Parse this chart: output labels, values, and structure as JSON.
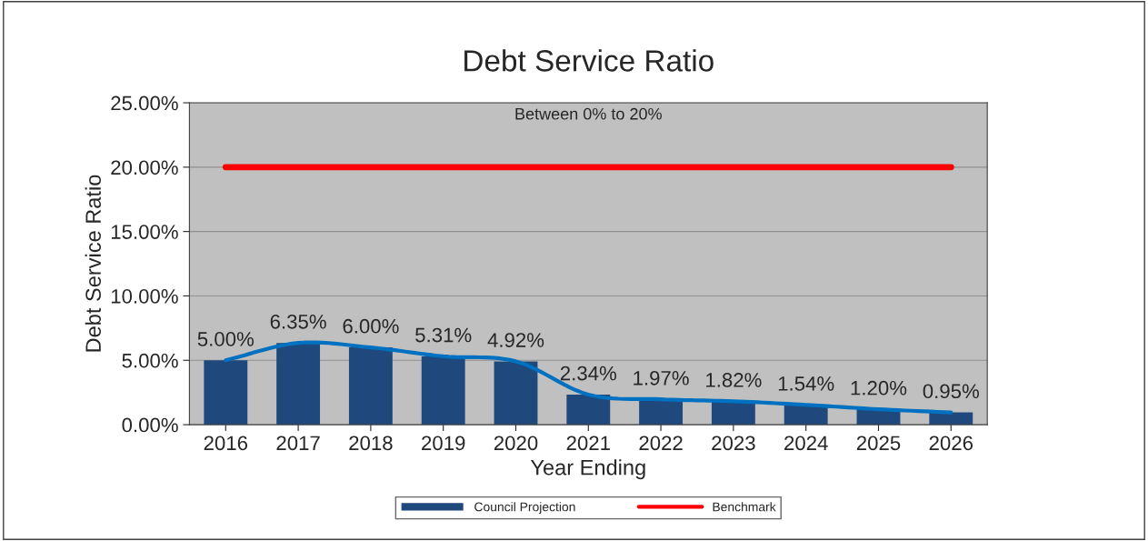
{
  "chart_data": {
    "type": "bar",
    "title": "Debt Service Ratio",
    "subtitle": "Between 0% to 20%",
    "xlabel": "Year Ending",
    "ylabel": "Debt Service Ratio",
    "categories": [
      "2016",
      "2017",
      "2018",
      "2019",
      "2020",
      "2021",
      "2022",
      "2023",
      "2024",
      "2025",
      "2026"
    ],
    "series": [
      {
        "name": "Council Projection",
        "color": "#1f497d",
        "values": [
          5.0,
          6.35,
          6.0,
          5.31,
          4.92,
          2.34,
          1.97,
          1.82,
          1.54,
          1.2,
          0.95
        ],
        "value_labels": [
          "5.00%",
          "6.35%",
          "6.00%",
          "5.31%",
          "4.92%",
          "2.34%",
          "1.97%",
          "1.82%",
          "1.54%",
          "1.20%",
          "0.95%"
        ]
      },
      {
        "type": "line",
        "color": "#0070c0",
        "values": [
          5.0,
          6.35,
          6.0,
          5.31,
          4.92,
          2.34,
          1.97,
          1.82,
          1.54,
          1.2,
          0.95
        ]
      },
      {
        "name": "Benchmark",
        "type": "line",
        "color": "#ff0000",
        "values": [
          20,
          20,
          20,
          20,
          20,
          20,
          20,
          20,
          20,
          20,
          20
        ]
      }
    ],
    "ylim": [
      0,
      25
    ],
    "yticks": [
      {
        "value": 0,
        "label": "0.00%"
      },
      {
        "value": 5,
        "label": "5.00%"
      },
      {
        "value": 10,
        "label": "10.00%"
      },
      {
        "value": 15,
        "label": "15.00%"
      },
      {
        "value": 20,
        "label": "20.00%"
      },
      {
        "value": 25,
        "label": "25.00%"
      }
    ],
    "grid": "y",
    "legend": "bottom"
  }
}
